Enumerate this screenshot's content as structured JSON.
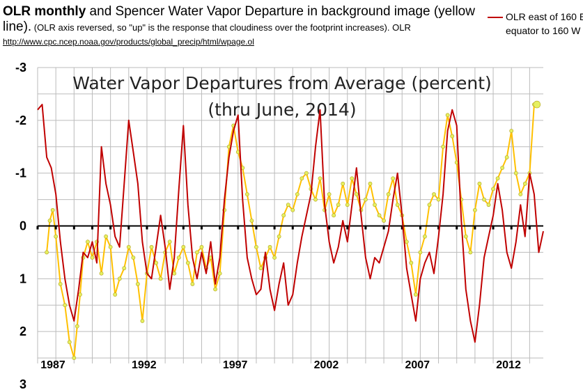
{
  "header": {
    "line1_bold": "OLR monthly",
    "line1_rest": " and Spencer Water Vapor Departure in background image (yellow",
    "line2_start": "line).",
    "line2_note": "  (OLR axis reversed, so \"up\" is the response that cloudiness over the footprint increases). OLR",
    "line3_url": "http://www.cpc.ncep.noaa.gov/products/global_precip/html/wpage.ol"
  },
  "legend": {
    "label_line1": "OLR east of 160 E",
    "label_line2": "equator to 160 W"
  },
  "background_image": {
    "title_line1": "Water Vapor Departures from Average (percent)",
    "title_line2": "(thru June, 2014)"
  },
  "colors": {
    "olr_line": "#c00000",
    "water_vapor_line": "#ffc000",
    "water_vapor_marker": "#e6f060",
    "zero_line": "#000000",
    "grid": "#bbbbbb"
  },
  "chart_data": {
    "type": "line",
    "title": "OLR monthly and Spencer Water Vapor Departure",
    "xlabel": "",
    "ylabel": "",
    "ylim": [
      -3,
      3
    ],
    "y_reversed": true,
    "yticks": [
      -3,
      -2,
      -1,
      0,
      1,
      2,
      3
    ],
    "ytick_labels": [
      "-3",
      "-2",
      "-1",
      "0",
      "1",
      "2",
      "3"
    ],
    "xlim": [
      1987,
      2014.75
    ],
    "xticks": [
      1987,
      1992,
      1997,
      2002,
      2007,
      2012
    ],
    "xtick_labels": [
      "1987",
      "1992",
      "1997",
      "2002",
      "2007",
      "2012"
    ],
    "series": [
      {
        "name": "OLR east of 160 E equator to 160 W",
        "style": "line",
        "x": [
          1987.0,
          1987.25,
          1987.5,
          1987.75,
          1988.0,
          1988.25,
          1988.5,
          1988.75,
          1989.0,
          1989.25,
          1989.5,
          1989.75,
          1990.0,
          1990.25,
          1990.5,
          1990.75,
          1991.0,
          1991.25,
          1991.5,
          1991.75,
          1992.0,
          1992.25,
          1992.5,
          1992.75,
          1993.0,
          1993.25,
          1993.5,
          1993.75,
          1994.0,
          1994.25,
          1994.5,
          1994.75,
          1995.0,
          1995.25,
          1995.5,
          1995.75,
          1996.0,
          1996.25,
          1996.5,
          1996.75,
          1997.0,
          1997.25,
          1997.5,
          1997.75,
          1998.0,
          1998.25,
          1998.5,
          1998.75,
          1999.0,
          1999.25,
          1999.5,
          1999.75,
          2000.0,
          2000.25,
          2000.5,
          2000.75,
          2001.0,
          2001.25,
          2001.5,
          2001.75,
          2002.0,
          2002.25,
          2002.5,
          2002.75,
          2003.0,
          2003.25,
          2003.5,
          2003.75,
          2004.0,
          2004.25,
          2004.5,
          2004.75,
          2005.0,
          2005.25,
          2005.5,
          2005.75,
          2006.0,
          2006.25,
          2006.5,
          2006.75,
          2007.0,
          2007.25,
          2007.5,
          2007.75,
          2008.0,
          2008.25,
          2008.5,
          2008.75,
          2009.0,
          2009.25,
          2009.5,
          2009.75,
          2010.0,
          2010.25,
          2010.5,
          2010.75,
          2011.0,
          2011.25,
          2011.5,
          2011.75,
          2012.0,
          2012.25,
          2012.5,
          2012.75,
          2013.0,
          2013.25,
          2013.5,
          2013.75,
          2014.0,
          2014.25,
          2014.5,
          2014.75
        ],
        "values": [
          -2.2,
          -2.3,
          -1.3,
          -1.1,
          -0.6,
          0.3,
          1.0,
          1.5,
          1.8,
          1.2,
          0.5,
          0.6,
          0.3,
          0.7,
          -1.5,
          -0.8,
          -0.4,
          0.2,
          0.4,
          -0.8,
          -2.0,
          -1.4,
          -0.8,
          0.3,
          0.9,
          1.0,
          0.4,
          -0.2,
          0.4,
          1.2,
          0.6,
          -0.7,
          -1.9,
          -0.4,
          0.6,
          1.0,
          0.5,
          0.9,
          0.3,
          1.1,
          0.6,
          -0.5,
          -1.3,
          -1.8,
          -2.1,
          -0.5,
          0.6,
          1.0,
          1.3,
          1.2,
          0.5,
          1.2,
          1.6,
          1.1,
          0.7,
          1.5,
          1.3,
          0.7,
          0.2,
          -0.2,
          -0.6,
          -1.5,
          -2.2,
          -0.4,
          0.3,
          0.7,
          0.4,
          -0.1,
          0.3,
          -0.4,
          -1.1,
          -0.2,
          0.6,
          1.0,
          0.6,
          0.7,
          0.4,
          0.1,
          -0.5,
          -1.0,
          -0.2,
          0.8,
          1.3,
          1.8,
          1.0,
          0.7,
          0.5,
          0.9,
          0.2,
          -0.6,
          -1.8,
          -2.2,
          -1.9,
          -0.1,
          1.2,
          1.8,
          2.2,
          1.5,
          0.6,
          0.2,
          -0.2,
          -0.8,
          -0.3,
          0.5,
          0.8,
          0.3,
          -0.4,
          0.2,
          -1.0,
          -0.6,
          0.5,
          0.1
        ]
      },
      {
        "name": "Water Vapor Departures from Average (percent)",
        "style": "line-markers",
        "x": [
          1987.5,
          1987.67,
          1987.83,
          1988.0,
          1988.25,
          1988.5,
          1988.75,
          1989.0,
          1989.17,
          1989.33,
          1989.5,
          1989.75,
          1990.0,
          1990.25,
          1990.5,
          1990.75,
          1991.0,
          1991.25,
          1991.5,
          1991.75,
          1992.0,
          1992.25,
          1992.5,
          1992.75,
          1993.0,
          1993.25,
          1993.5,
          1993.75,
          1994.0,
          1994.25,
          1994.5,
          1994.75,
          1995.0,
          1995.25,
          1995.5,
          1995.75,
          1996.0,
          1996.25,
          1996.5,
          1996.75,
          1997.0,
          1997.25,
          1997.5,
          1997.75,
          1998.0,
          1998.25,
          1998.5,
          1998.75,
          1999.0,
          1999.25,
          1999.5,
          1999.75,
          2000.0,
          2000.25,
          2000.5,
          2000.75,
          2001.0,
          2001.25,
          2001.5,
          2001.75,
          2002.0,
          2002.25,
          2002.5,
          2002.75,
          2003.0,
          2003.25,
          2003.5,
          2003.75,
          2004.0,
          2004.25,
          2004.5,
          2004.75,
          2005.0,
          2005.25,
          2005.5,
          2005.75,
          2006.0,
          2006.25,
          2006.5,
          2006.75,
          2007.0,
          2007.25,
          2007.5,
          2007.75,
          2008.0,
          2008.25,
          2008.5,
          2008.75,
          2009.0,
          2009.25,
          2009.5,
          2009.75,
          2010.0,
          2010.25,
          2010.5,
          2010.75,
          2011.0,
          2011.25,
          2011.5,
          2011.75,
          2012.0,
          2012.25,
          2012.5,
          2012.75,
          2013.0,
          2013.25,
          2013.5,
          2013.75,
          2014.0,
          2014.25,
          2014.4
        ],
        "values": [
          0.5,
          -0.1,
          -0.3,
          0.2,
          1.1,
          1.5,
          2.2,
          2.5,
          1.9,
          1.3,
          0.6,
          0.3,
          0.6,
          0.3,
          0.9,
          0.2,
          0.4,
          1.3,
          1.0,
          0.8,
          0.4,
          0.6,
          1.1,
          1.8,
          0.9,
          0.4,
          0.7,
          1.0,
          0.5,
          0.3,
          0.9,
          0.6,
          0.4,
          0.7,
          1.1,
          0.5,
          0.4,
          0.8,
          0.6,
          1.2,
          0.9,
          -0.3,
          -1.5,
          -1.9,
          -1.4,
          -1.1,
          -0.6,
          -0.1,
          0.4,
          0.8,
          0.6,
          0.4,
          0.6,
          0.2,
          -0.2,
          -0.4,
          -0.3,
          -0.6,
          -0.9,
          -1.0,
          -0.7,
          -0.5,
          -0.9,
          -0.3,
          -0.6,
          -0.2,
          -0.4,
          -0.8,
          -0.4,
          -0.9,
          -0.6,
          -0.3,
          -0.5,
          -0.8,
          -0.4,
          -0.2,
          -0.1,
          -0.6,
          -0.9,
          -0.4,
          -0.2,
          0.3,
          0.7,
          1.3,
          0.5,
          0.2,
          -0.4,
          -0.6,
          -0.5,
          -1.5,
          -2.1,
          -1.7,
          -1.2,
          -0.5,
          0.2,
          0.5,
          -0.3,
          -0.8,
          -0.5,
          -0.4,
          -0.7,
          -0.9,
          -1.1,
          -1.3,
          -1.8,
          -1.0,
          -0.6,
          -0.8,
          -1.0,
          -2.3,
          -2.3
        ]
      }
    ]
  }
}
